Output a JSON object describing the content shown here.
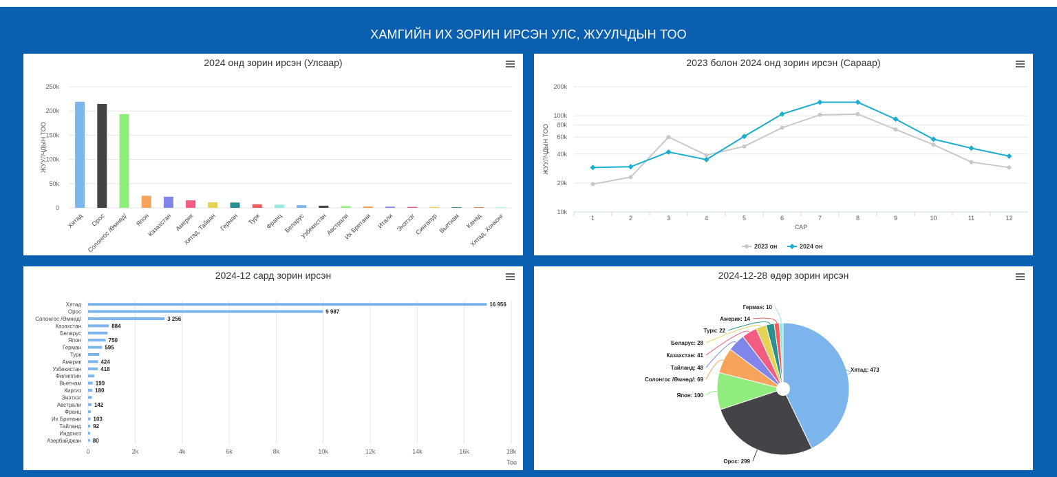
{
  "page": {
    "title": "ХАМГИЙН ИХ ЗОРИН ИРСЭН УЛС, ЖУУЛЧДЫН ТОО"
  },
  "chart_data": [
    {
      "type": "bar",
      "title": "2024 онд зорин ирсэн (Улсаар)",
      "ylabel": "ЖУУЛЧДЫН ТОО",
      "ylim": [
        0,
        250000
      ],
      "yticks": [
        "0",
        "50k",
        "100k",
        "150k",
        "200k",
        "250k"
      ],
      "categories": [
        "Хятад",
        "Орос",
        "Солонгос /Өмнөд/",
        "Япон",
        "Казахстан",
        "Америк",
        "Хятад, Тайван",
        "Герман",
        "Турк",
        "Франц",
        "Беларус",
        "Узбекистан",
        "Австрали",
        "Их Британи",
        "Итали",
        "Энэтхэг",
        "Сингапур",
        "Вьетнам",
        "Канад",
        "Хятад, Хонконг"
      ],
      "values": [
        219000,
        214500,
        193500,
        25000,
        23000,
        15500,
        11500,
        11000,
        7500,
        6500,
        5500,
        4500,
        3500,
        3000,
        2500,
        2000,
        2000,
        1500,
        1200,
        1000
      ],
      "colors": [
        "#7cb5ec",
        "#434348",
        "#90ed7d",
        "#f7a35c",
        "#8085e9",
        "#f15c80",
        "#e4d354",
        "#2b908f",
        "#f45b5b",
        "#91e8e1",
        "#7cb5ec",
        "#434348",
        "#90ed7d",
        "#f7a35c",
        "#8085e9",
        "#f15c80",
        "#e4d354",
        "#2b908f",
        "#f45b5b",
        "#91e8e1"
      ]
    },
    {
      "type": "line",
      "title": "2023 болон 2024 онд зорин ирсэн (Сараар)",
      "ylabel": "ЖУУЛЧДЫН ТОО",
      "xlabel": "САР",
      "log_scale": true,
      "ylim": [
        10000,
        200000
      ],
      "yticks": [
        {
          "v": 10000,
          "label": "10k"
        },
        {
          "v": 20000,
          "label": "20k"
        },
        {
          "v": 40000,
          "label": "40k"
        },
        {
          "v": 60000,
          "label": "60k"
        },
        {
          "v": 80000,
          "label": "80k"
        },
        {
          "v": 100000,
          "label": "100k"
        },
        {
          "v": 200000,
          "label": "200k"
        }
      ],
      "categories": [
        "1",
        "2",
        "3",
        "4",
        "5",
        "6",
        "7",
        "8",
        "9",
        "10",
        "11",
        "12"
      ],
      "series": [
        {
          "name": "2023 он",
          "color": "#c8c8c8",
          "values": [
            19500,
            23000,
            60000,
            39000,
            48000,
            75000,
            102000,
            104000,
            72000,
            50000,
            33000,
            29000
          ]
        },
        {
          "name": "2024 он",
          "color": "#1aadce",
          "values": [
            29000,
            29500,
            42000,
            35000,
            61000,
            104000,
            138000,
            138000,
            92000,
            57000,
            46000,
            38000
          ]
        }
      ]
    },
    {
      "type": "bar",
      "orientation": "horizontal",
      "title": "2024-12 сард зорин ирсэн",
      "xlabel": "Тоо",
      "xlim": [
        0,
        18000
      ],
      "xticks": [
        "0",
        "2k",
        "4k",
        "6k",
        "8k",
        "10k",
        "12k",
        "14k",
        "16k",
        "18k"
      ],
      "color": "#7cb5ec",
      "categories": [
        "Хятад",
        "Орос",
        "Солонгос /Өмнөд/",
        "Казахстан",
        "Беларус",
        "Япон",
        "Герман",
        "Турк",
        "Америк",
        "Узбекистан",
        "Филиппин",
        "Вьетнам",
        "Киргиз",
        "Энэтхэг",
        "Австрали",
        "Франц",
        "Их Британи",
        "Тайланд",
        "Индонез",
        "Азербайджан"
      ],
      "values": [
        16956,
        9987,
        3256,
        884,
        830,
        750,
        595,
        480,
        424,
        418,
        260,
        199,
        180,
        160,
        142,
        120,
        103,
        92,
        85,
        80
      ],
      "labels": [
        "16 956",
        "9 987",
        "3 256",
        "884",
        "",
        "750",
        "595",
        "",
        "424",
        "418",
        "",
        "199",
        "180",
        "",
        "142",
        "",
        "103",
        "92",
        "",
        "80"
      ]
    },
    {
      "type": "pie",
      "title": "2024-12-28 өдөр зорин ирсэн",
      "slices": [
        {
          "name": "Хятад",
          "value": 473,
          "color": "#7cb5ec",
          "label": "Хятад: 473"
        },
        {
          "name": "Орос",
          "value": 299,
          "color": "#434348",
          "label": "Орос: 299"
        },
        {
          "name": "Япон",
          "value": 100,
          "color": "#90ed7d",
          "label": "Япон: 100"
        },
        {
          "name": "Солонгос /Өмнөд/",
          "value": 69,
          "color": "#f7a35c",
          "label": "Солонгос /Өмнөд/: 69"
        },
        {
          "name": "Тайланд",
          "value": 48,
          "color": "#8085e9",
          "label": "Тайланд: 48"
        },
        {
          "name": "Казахстан",
          "value": 41,
          "color": "#f15c80",
          "label": "Казахстан: 41"
        },
        {
          "name": "Беларус",
          "value": 28,
          "color": "#e4d354",
          "label": "Беларус: 28"
        },
        {
          "name": "Турк",
          "value": 22,
          "color": "#2b908f",
          "label": "Турк: 22"
        },
        {
          "name": "Америк",
          "value": 14,
          "color": "#f45b5b",
          "label": "Америк: 14"
        },
        {
          "name": "Герман",
          "value": 10,
          "color": "#91e8e1",
          "label": "Герман: 10"
        }
      ]
    }
  ]
}
